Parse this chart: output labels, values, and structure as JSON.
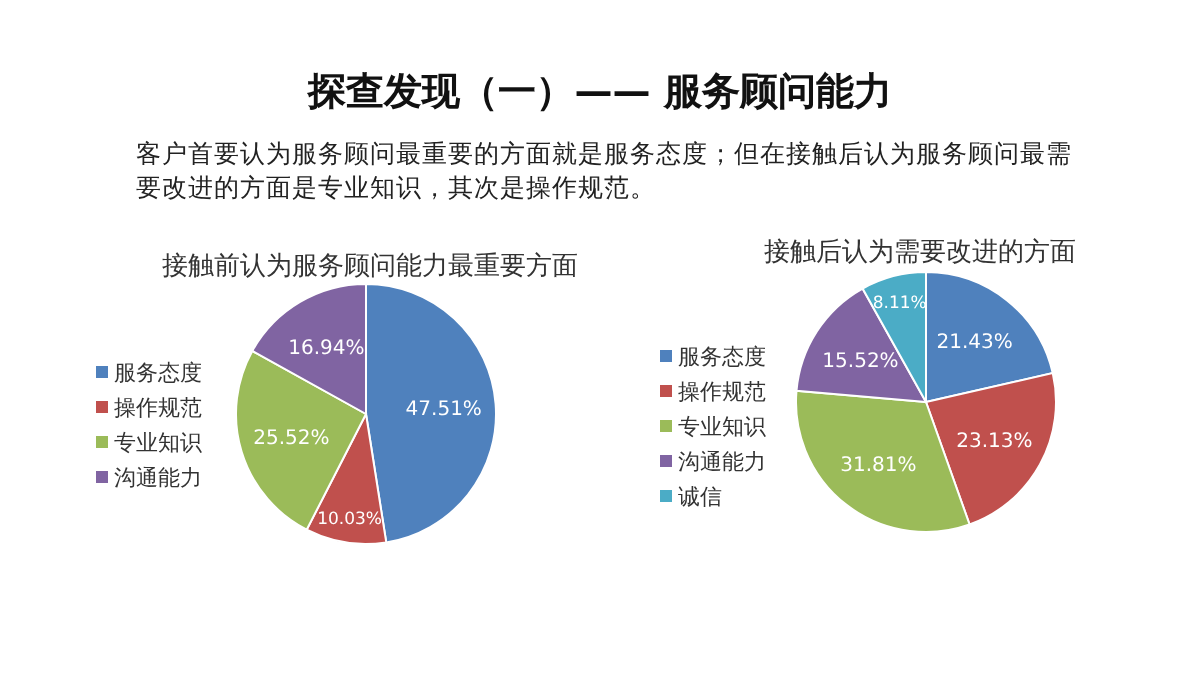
{
  "chart_data": [
    {
      "type": "other",
      "title": "探查发现（一）—— 服务顾问能力",
      "subtitle": "客户首要认为服务顾问最重要的方面就是服务态度；但在接触后认为服务顾问最需要改进的方面是专业知识，其次是操作规范。"
    },
    {
      "type": "pie",
      "title": "接触前认为服务顾问能力最重要方面",
      "categories": [
        "服务态度",
        "操作规范",
        "专业知识",
        "沟通能力"
      ],
      "values": [
        47.51,
        10.03,
        25.52,
        16.94
      ],
      "value_labels": [
        "47.51%",
        "10.03%",
        "25.52%",
        "16.94%"
      ],
      "colors": [
        "#4f81bd",
        "#c0504d",
        "#9bbb59",
        "#8064a2"
      ],
      "legend": "left"
    },
    {
      "type": "pie",
      "title": "接触后认为需要改进的方面",
      "categories": [
        "服务态度",
        "操作规范",
        "专业知识",
        "沟通能力",
        "诚信"
      ],
      "values": [
        21.43,
        23.13,
        31.81,
        15.52,
        8.11
      ],
      "value_labels": [
        "21.43%",
        "23.13%",
        "31.81%",
        "15.52%",
        "8.11%"
      ],
      "colors": [
        "#4f81bd",
        "#c0504d",
        "#9bbb59",
        "#8064a2",
        "#4bacc6"
      ],
      "legend": "left"
    }
  ]
}
